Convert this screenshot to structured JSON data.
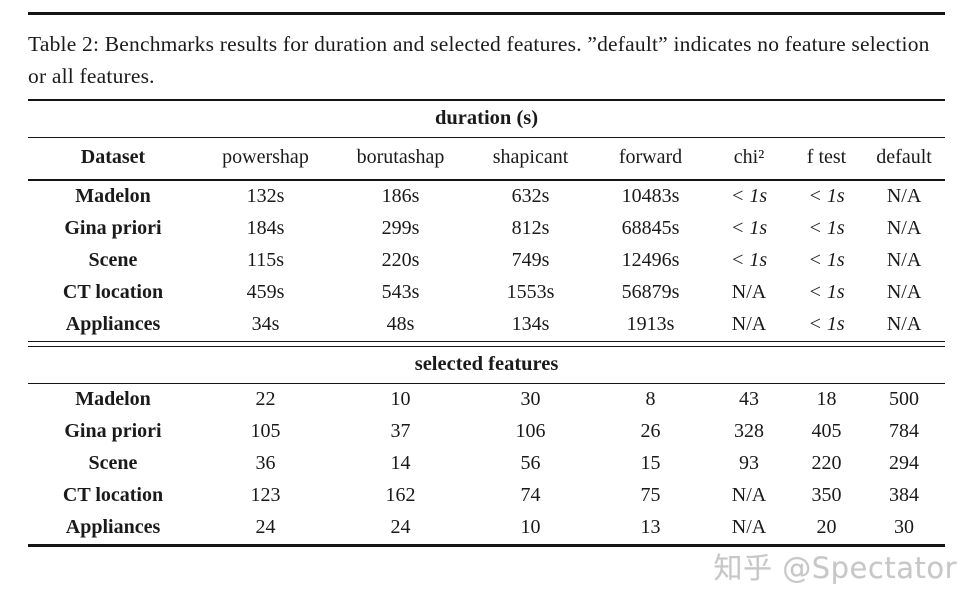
{
  "page": {
    "caption": "Table 2: Benchmarks results for duration and selected features. ”default” indicates no feature selection or all features."
  },
  "table": {
    "section_duration": "duration (s)",
    "section_features": "selected features",
    "columns": [
      "Dataset",
      "powershap",
      "borutashap",
      "shapicant",
      "forward",
      "chi²",
      "f test",
      "default"
    ],
    "duration_rows": [
      {
        "dataset": "Madelon",
        "values": [
          "132s",
          "186s",
          "632s",
          "10483s",
          "< 1s",
          "< 1s",
          "N/A"
        ]
      },
      {
        "dataset": "Gina priori",
        "values": [
          "184s",
          "299s",
          "812s",
          "68845s",
          "< 1s",
          "< 1s",
          "N/A"
        ]
      },
      {
        "dataset": "Scene",
        "values": [
          "115s",
          "220s",
          "749s",
          "12496s",
          "< 1s",
          "< 1s",
          "N/A"
        ]
      },
      {
        "dataset": "CT location",
        "values": [
          "459s",
          "543s",
          "1553s",
          "56879s",
          "N/A",
          "< 1s",
          "N/A"
        ]
      },
      {
        "dataset": "Appliances",
        "values": [
          "34s",
          "48s",
          "134s",
          "1913s",
          "N/A",
          "< 1s",
          "N/A"
        ]
      }
    ],
    "features_rows": [
      {
        "dataset": "Madelon",
        "values": [
          "22",
          "10",
          "30",
          "8",
          "43",
          "18",
          "500"
        ]
      },
      {
        "dataset": "Gina priori",
        "values": [
          "105",
          "37",
          "106",
          "26",
          "328",
          "405",
          "784"
        ]
      },
      {
        "dataset": "Scene",
        "values": [
          "36",
          "14",
          "56",
          "15",
          "93",
          "220",
          "294"
        ]
      },
      {
        "dataset": "CT location",
        "values": [
          "123",
          "162",
          "74",
          "75",
          "N/A",
          "350",
          "384"
        ]
      },
      {
        "dataset": "Appliances",
        "values": [
          "24",
          "24",
          "10",
          "13",
          "N/A",
          "20",
          "30"
        ]
      }
    ]
  },
  "watermark": "知乎 @Spectator"
}
